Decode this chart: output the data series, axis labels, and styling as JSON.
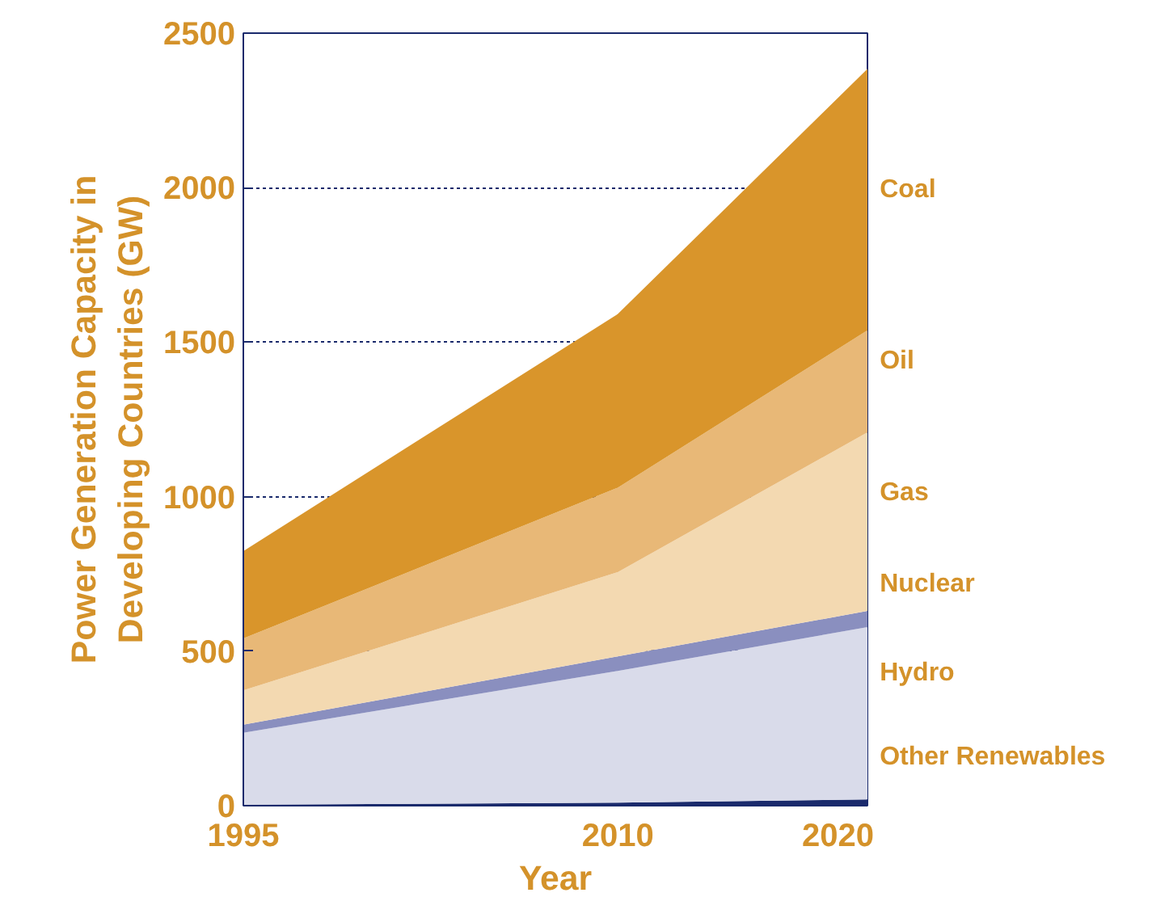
{
  "chart_data": {
    "type": "area",
    "stacked": true,
    "xlabel": "Year",
    "ylabel": "Power Generation Capacity in\nDeveloping Countries (GW)",
    "x": [
      1995,
      2010,
      2020
    ],
    "xlim": [
      1995,
      2020
    ],
    "xticks": [
      1995,
      2010,
      2020
    ],
    "ylim": [
      0,
      2500
    ],
    "yticks": [
      0,
      500,
      1000,
      1500,
      2000,
      2500
    ],
    "grid": "y",
    "series": [
      {
        "name": "Other Renewables",
        "color": "#1a2a6c",
        "values": [
          3,
          10,
          20
        ]
      },
      {
        "name": "Hydro",
        "color": "#d9dbea",
        "values": [
          233,
          426,
          558
        ]
      },
      {
        "name": "Nuclear",
        "color": "#8a8fbf",
        "values": [
          26,
          47,
          52
        ]
      },
      {
        "name": "Gas",
        "color": "#f3d9b1",
        "values": [
          111,
          273,
          578
        ]
      },
      {
        "name": "Oil",
        "color": "#e8b877",
        "values": [
          168,
          273,
          330
        ]
      },
      {
        "name": "Coal",
        "color": "#d9952b",
        "values": [
          283,
          562,
          846
        ]
      }
    ]
  }
}
